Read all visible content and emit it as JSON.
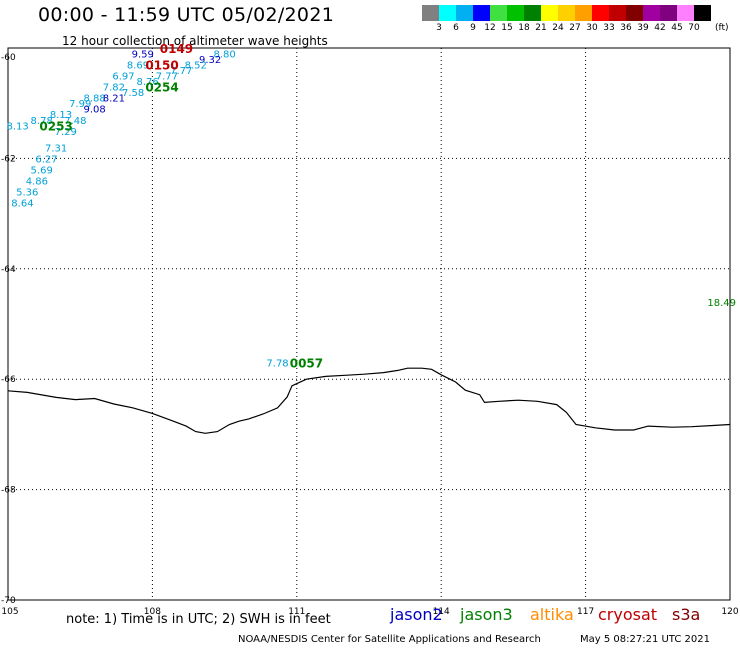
{
  "header": {
    "title": "00:00 - 11:59 UTC 05/02/2021",
    "subtitle": "12 hour collection of altimeter wave heights"
  },
  "color_scale": {
    "colors": [
      "#808080",
      "#00ffff",
      "#00b0f0",
      "#0000ff",
      "#40e040",
      "#00c000",
      "#008000",
      "#ffff00",
      "#ffd000",
      "#ffa000",
      "#ff0000",
      "#c00000",
      "#800000",
      "#a000a0",
      "#800080",
      "#ff80ff",
      "#000000"
    ],
    "labels": [
      "3",
      "6",
      "9",
      "12",
      "15",
      "18",
      "21",
      "24",
      "27",
      "30",
      "33",
      "36",
      "39",
      "42",
      "45",
      "70"
    ],
    "unit": "(ft)"
  },
  "axes": {
    "x_ticks": [
      "105",
      "108",
      "111",
      "114",
      "117",
      "120"
    ],
    "y_ticks": [
      "-60",
      "-62",
      "-64",
      "-66",
      "-68",
      "-70"
    ]
  },
  "chart_data": {
    "type": "scatter",
    "description_units": "longitude (°E), latitude (°N), wave height (ft)",
    "xlim": [
      105,
      120
    ],
    "ylim": [
      -70,
      -60
    ],
    "grid": true,
    "wave_heights": [
      {
        "lon": 107.8,
        "lat": -60.1,
        "label": "9.59",
        "sat": "jason2"
      },
      {
        "lon": 109.5,
        "lat": -60.1,
        "label": "8.80",
        "sat": "altika"
      },
      {
        "lon": 109.2,
        "lat": -60.2,
        "label": "9.32",
        "sat": "jason2"
      },
      {
        "lon": 108.9,
        "lat": -60.3,
        "label": "8.52",
        "sat": "altika"
      },
      {
        "lon": 107.7,
        "lat": -60.3,
        "label": "8.69",
        "sat": "altika"
      },
      {
        "lon": 108.6,
        "lat": -60.4,
        "label": "7.77",
        "sat": "altika"
      },
      {
        "lon": 107.4,
        "lat": -60.5,
        "label": "6.97",
        "sat": "altika"
      },
      {
        "lon": 108.3,
        "lat": -60.5,
        "label": "7.77",
        "sat": "altika"
      },
      {
        "lon": 107.9,
        "lat": -60.6,
        "label": "8.76",
        "sat": "altika"
      },
      {
        "lon": 107.2,
        "lat": -60.7,
        "label": "7.82",
        "sat": "altika"
      },
      {
        "lon": 107.6,
        "lat": -60.8,
        "label": "7.58",
        "sat": "altika"
      },
      {
        "lon": 106.8,
        "lat": -60.9,
        "label": "8.88",
        "sat": "altika"
      },
      {
        "lon": 107.2,
        "lat": -60.9,
        "label": "8.21",
        "sat": "jason2"
      },
      {
        "lon": 106.5,
        "lat": -61.0,
        "label": "7.99",
        "sat": "altika"
      },
      {
        "lon": 106.8,
        "lat": -61.1,
        "label": "9.08",
        "sat": "jason2"
      },
      {
        "lon": 106.1,
        "lat": -61.2,
        "label": "8.13",
        "sat": "altika"
      },
      {
        "lon": 106.4,
        "lat": -61.3,
        "label": "7.48",
        "sat": "altika"
      },
      {
        "lon": 105.7,
        "lat": -61.3,
        "label": "8.78",
        "sat": "altika"
      },
      {
        "lon": 105.2,
        "lat": -61.4,
        "label": "8.13",
        "sat": "altika"
      },
      {
        "lon": 106.2,
        "lat": -61.5,
        "label": "7.29",
        "sat": "altika"
      },
      {
        "lon": 106.0,
        "lat": -61.8,
        "label": "7.31",
        "sat": "altika"
      },
      {
        "lon": 105.8,
        "lat": -62.0,
        "label": "6.27",
        "sat": "altika"
      },
      {
        "lon": 105.7,
        "lat": -62.2,
        "label": "5.69",
        "sat": "altika"
      },
      {
        "lon": 105.6,
        "lat": -62.4,
        "label": "4.86",
        "sat": "altika"
      },
      {
        "lon": 105.4,
        "lat": -62.6,
        "label": "5.36",
        "sat": "altika"
      },
      {
        "lon": 105.3,
        "lat": -62.8,
        "label": "8.64",
        "sat": "altika"
      },
      {
        "lon": 110.6,
        "lat": -65.7,
        "label": "7.78",
        "sat": "altika"
      },
      {
        "lon": 120.0,
        "lat": -64.6,
        "label": "18.49",
        "sat": "jason3"
      }
    ],
    "pass_times": [
      {
        "lon": 108.5,
        "lat": -60.0,
        "label": "0149",
        "sat": "cryosat"
      },
      {
        "lon": 108.2,
        "lat": -60.3,
        "label": "0150",
        "sat": "cryosat"
      },
      {
        "lon": 108.2,
        "lat": -60.7,
        "label": "0254",
        "sat": "jason3"
      },
      {
        "lon": 106.0,
        "lat": -61.4,
        "label": "0253",
        "sat": "jason3"
      },
      {
        "lon": 111.2,
        "lat": -65.7,
        "label": "0057",
        "sat": "jason3"
      }
    ],
    "coastline": [
      [
        105.0,
        -66.21
      ],
      [
        105.4,
        -66.24
      ],
      [
        106.0,
        -66.33
      ],
      [
        106.4,
        -66.37
      ],
      [
        106.8,
        -66.35
      ],
      [
        107.2,
        -66.45
      ],
      [
        107.6,
        -66.52
      ],
      [
        108.0,
        -66.62
      ],
      [
        108.4,
        -66.75
      ],
      [
        108.7,
        -66.85
      ],
      [
        108.9,
        -66.95
      ],
      [
        109.1,
        -66.98
      ],
      [
        109.35,
        -66.95
      ],
      [
        109.6,
        -66.82
      ],
      [
        109.8,
        -66.76
      ],
      [
        110.0,
        -66.72
      ],
      [
        110.3,
        -66.63
      ],
      [
        110.6,
        -66.52
      ],
      [
        110.8,
        -66.32
      ],
      [
        110.85,
        -66.22
      ],
      [
        110.9,
        -66.12
      ],
      [
        111.2,
        -66.0
      ],
      [
        111.6,
        -65.95
      ],
      [
        112.0,
        -65.93
      ],
      [
        112.4,
        -65.91
      ],
      [
        112.8,
        -65.88
      ],
      [
        113.1,
        -65.84
      ],
      [
        113.3,
        -65.8
      ],
      [
        113.6,
        -65.8
      ],
      [
        113.8,
        -65.82
      ],
      [
        114.0,
        -65.92
      ],
      [
        114.3,
        -66.05
      ],
      [
        114.5,
        -66.2
      ],
      [
        114.8,
        -66.28
      ],
      [
        114.9,
        -66.42
      ],
      [
        115.2,
        -66.4
      ],
      [
        115.6,
        -66.38
      ],
      [
        116.0,
        -66.4
      ],
      [
        116.4,
        -66.46
      ],
      [
        116.6,
        -66.6
      ],
      [
        116.8,
        -66.82
      ],
      [
        117.2,
        -66.88
      ],
      [
        117.6,
        -66.92
      ],
      [
        118.0,
        -66.92
      ],
      [
        118.3,
        -66.85
      ],
      [
        118.8,
        -66.87
      ],
      [
        119.2,
        -66.86
      ],
      [
        119.6,
        -66.84
      ],
      [
        120.0,
        -66.82
      ]
    ]
  },
  "satellite_colors": {
    "jason2": "#0000c0",
    "jason3": "#008000",
    "altika": "#ff8c00",
    "cryosat": "#c00000",
    "s3a": "#800000",
    "wave_label": "#00a0d8"
  },
  "footer": {
    "note": "note: 1) Time is in UTC; 2) SWH is in feet",
    "satellites": [
      "jason2",
      "jason3",
      "altika",
      "cryosat",
      "s3a"
    ],
    "credit": "NOAA/NESDIS Center for Satellite Applications and Research",
    "generated": "May  5 08:27:21 UTC 2021"
  }
}
